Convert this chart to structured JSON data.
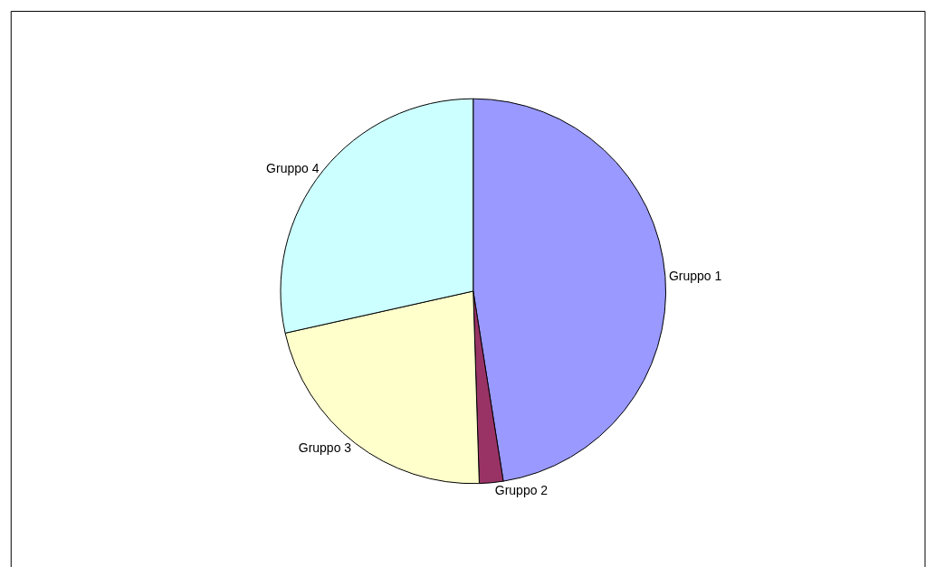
{
  "chart_data": {
    "type": "pie",
    "categories": [
      "Gruppo 1",
      "Gruppo 2",
      "Gruppo 3",
      "Gruppo 4"
    ],
    "values": [
      47.5,
      2.0,
      22.0,
      28.5
    ],
    "colors": [
      "#9999ff",
      "#993366",
      "#ffffcc",
      "#ccffff"
    ],
    "legend": false
  }
}
